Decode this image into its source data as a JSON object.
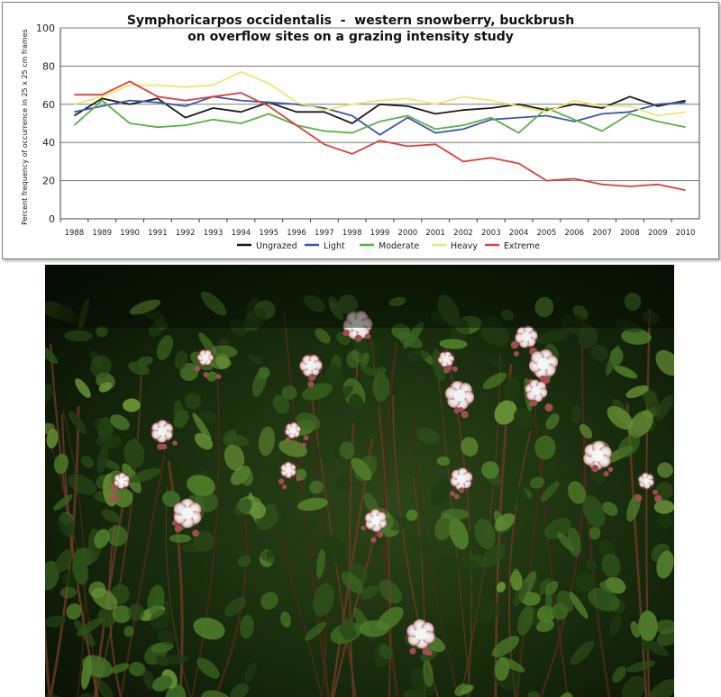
{
  "chart_data": {
    "type": "line",
    "title": "Symphoricarpos occidentalis  -  western snowberry, buckbrush",
    "subtitle": "on overflow sites on a grazing intensity study",
    "xlabel": "",
    "ylabel": "Percent frequency of occurrence in 25 x 25 cm frames",
    "x": [
      "1988",
      "1989",
      "1990",
      "1991",
      "1992",
      "1993",
      "1994",
      "1995",
      "1996",
      "1997",
      "1998",
      "1999",
      "2000",
      "2001",
      "2002",
      "2003",
      "2004",
      "2005",
      "2006",
      "2007",
      "2008",
      "2009",
      "2010"
    ],
    "ylim": [
      0,
      100
    ],
    "yticks": [
      "0",
      "20",
      "40",
      "60",
      "80",
      "100"
    ],
    "grid": true,
    "legend": "bottom",
    "series": [
      {
        "name": "Ungrazed",
        "color": "#1a1a1a",
        "values": [
          54,
          63,
          60,
          63,
          53,
          58,
          56,
          61,
          56,
          56,
          50,
          60,
          59,
          55,
          57,
          58,
          60,
          57,
          60,
          58,
          64,
          59,
          62
        ]
      },
      {
        "name": "Light",
        "color": "#3b57a8",
        "values": [
          56,
          59,
          62,
          61,
          59,
          64,
          62,
          61,
          60,
          58,
          54,
          44,
          53,
          45,
          47,
          52,
          53,
          54,
          51,
          55,
          56,
          60,
          61
        ]
      },
      {
        "name": "Moderate",
        "color": "#5ab045",
        "values": [
          49,
          62,
          50,
          48,
          49,
          52,
          50,
          55,
          49,
          46,
          45,
          51,
          54,
          47,
          49,
          53,
          45,
          58,
          52,
          46,
          55,
          51,
          48
        ]
      },
      {
        "name": "Heavy",
        "color": "#efe672",
        "values": [
          60,
          64,
          70,
          70,
          69,
          70,
          77,
          71,
          61,
          57,
          60,
          62,
          63,
          60,
          64,
          62,
          59,
          56,
          62,
          59,
          59,
          54,
          56
        ]
      },
      {
        "name": "Extreme",
        "color": "#d9413d",
        "values": [
          65,
          65,
          72,
          64,
          62,
          64,
          66,
          59,
          49,
          39,
          34,
          41,
          38,
          39,
          30,
          32,
          29,
          20,
          21,
          18,
          17,
          18,
          15
        ]
      }
    ]
  }
}
